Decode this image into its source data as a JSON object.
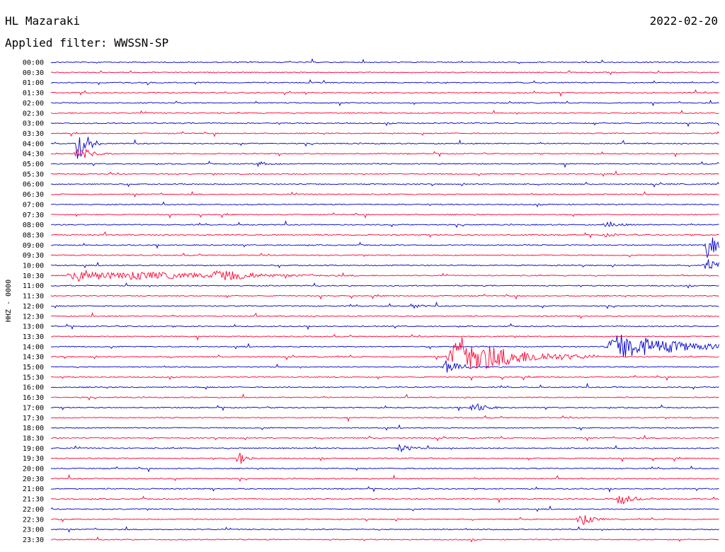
{
  "chart_data": {
    "type": "line",
    "title": "HL Mazaraki",
    "date": "2022-02-20",
    "subtitle": "Applied filter: WWSSN-SP",
    "ylabel": "HHZ - 0000",
    "colors": [
      "#0000cc",
      "#ff0033"
    ],
    "rows": [
      "00:00",
      "00:30",
      "01:00",
      "01:30",
      "02:00",
      "02:30",
      "03:00",
      "03:30",
      "04:00",
      "04:30",
      "05:00",
      "05:30",
      "06:00",
      "06:30",
      "07:00",
      "07:30",
      "08:00",
      "08:30",
      "09:00",
      "09:30",
      "10:00",
      "10:30",
      "11:00",
      "11:30",
      "12:00",
      "12:30",
      "13:00",
      "13:30",
      "14:00",
      "14:30",
      "15:00",
      "15:30",
      "16:00",
      "16:30",
      "17:00",
      "17:30",
      "18:00",
      "18:30",
      "19:00",
      "19:30",
      "20:00",
      "20:30",
      "21:00",
      "21:30",
      "22:00",
      "22:30",
      "23:00",
      "23:30"
    ],
    "events": [
      {
        "row": 8,
        "pos": 0.04,
        "amp": 30,
        "dur": 0.012
      },
      {
        "row": 9,
        "pos": 0.04,
        "amp": 10,
        "dur": 0.02
      },
      {
        "row": 10,
        "pos": 0.31,
        "amp": 4,
        "dur": 0.02
      },
      {
        "row": 16,
        "pos": 0.83,
        "amp": 4,
        "dur": 0.025
      },
      {
        "row": 17,
        "pos": 0.83,
        "amp": 3,
        "dur": 0.02
      },
      {
        "row": 18,
        "pos": 0.98,
        "amp": 20,
        "dur": 0.015
      },
      {
        "row": 20,
        "pos": 0.98,
        "amp": 12,
        "dur": 0.02
      },
      {
        "row": 21,
        "pos": 0.04,
        "amp": 9,
        "dur": 0.06
      },
      {
        "row": 21,
        "pos": 0.12,
        "amp": 6,
        "dur": 0.16
      },
      {
        "row": 21,
        "pos": 0.25,
        "amp": 12,
        "dur": 0.04
      },
      {
        "row": 24,
        "pos": 0.54,
        "amp": 4,
        "dur": 0.015
      },
      {
        "row": 28,
        "pos": 0.85,
        "amp": 20,
        "dur": 0.08
      },
      {
        "row": 29,
        "pos": 0.61,
        "amp": 30,
        "dur": 0.07
      },
      {
        "row": 30,
        "pos": 0.59,
        "amp": 10,
        "dur": 0.02
      },
      {
        "row": 34,
        "pos": 0.63,
        "amp": 8,
        "dur": 0.02
      },
      {
        "row": 38,
        "pos": 0.52,
        "amp": 6,
        "dur": 0.02
      },
      {
        "row": 39,
        "pos": 0.28,
        "amp": 12,
        "dur": 0.01
      },
      {
        "row": 43,
        "pos": 0.85,
        "amp": 10,
        "dur": 0.015
      },
      {
        "row": 45,
        "pos": 0.79,
        "amp": 12,
        "dur": 0.015
      }
    ]
  }
}
